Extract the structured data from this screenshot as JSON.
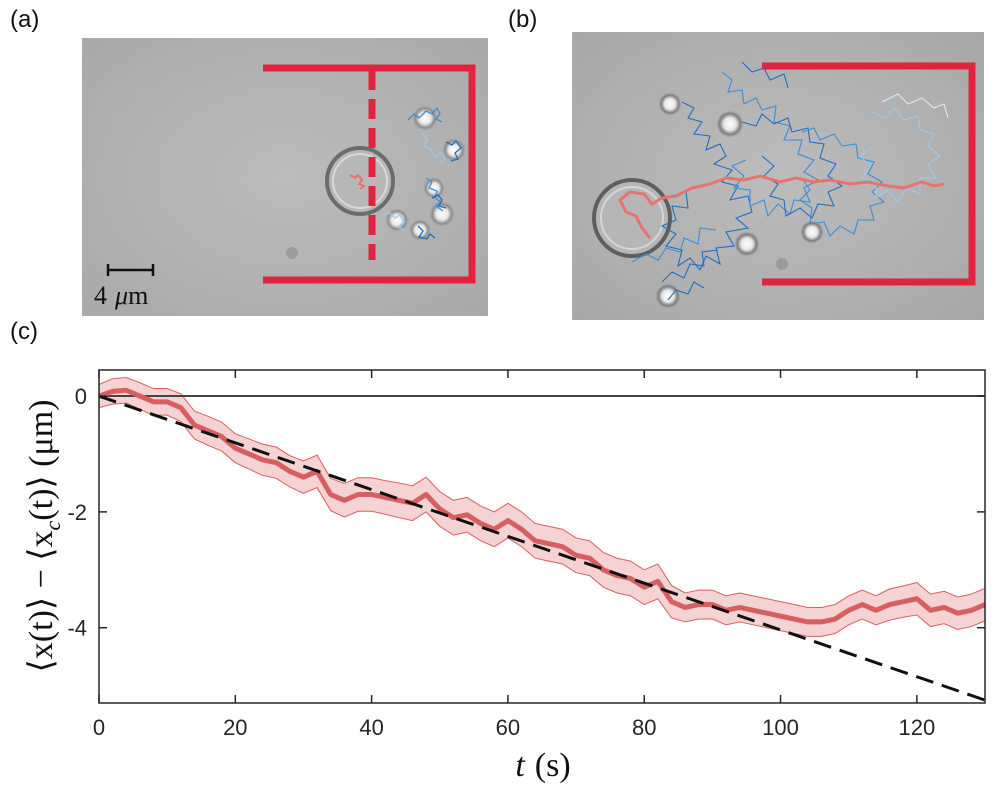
{
  "panels": {
    "a": {
      "label": "(a)",
      "scale_bar": {
        "number": "4",
        "unit_math": "μ",
        "unit_text": "m"
      }
    },
    "b": {
      "label": "(b)"
    },
    "c": {
      "label": "(c)"
    }
  },
  "colors": {
    "wall": "#e0233f",
    "trajectory_red": "#e8736e",
    "blue_dark": "#1f6fbf",
    "blue_mid": "#3a8fd6",
    "blue_light": "#9cc9ec",
    "band_fill": "#f6d3d3",
    "mean_line": "#d75f5f",
    "bg_gray": "#b4b4b4"
  },
  "chart_data": {
    "type": "line",
    "xlabel_var": "t",
    "xlabel_unit": "(s)",
    "ylabel": "⟨x(t)⟩ − ⟨x",
    "ylabel_sub": "c",
    "ylabel_tail": "(t)⟩ (μm)",
    "xlim": [
      0,
      130
    ],
    "ylim": [
      -5.3,
      0.45
    ],
    "xticks": [
      0,
      20,
      40,
      60,
      80,
      100,
      120
    ],
    "yticks": [
      0,
      -2,
      -4
    ],
    "ytick_labels": [
      "0",
      "-2",
      "-4"
    ],
    "reference_line": {
      "y": 0
    },
    "fit_line": {
      "x": [
        0,
        130
      ],
      "y": [
        0,
        -5.25
      ],
      "style": "dashed"
    },
    "mean": {
      "x": [
        0,
        2,
        4,
        6,
        8,
        10,
        12,
        14,
        16,
        18,
        20,
        22,
        24,
        26,
        28,
        30,
        32,
        34,
        36,
        38,
        40,
        42,
        44,
        46,
        48,
        50,
        52,
        54,
        56,
        58,
        60,
        62,
        64,
        66,
        68,
        70,
        72,
        74,
        76,
        78,
        80,
        82,
        84,
        86,
        88,
        90,
        92,
        94,
        96,
        98,
        100,
        102,
        104,
        106,
        108,
        110,
        112,
        114,
        116,
        118,
        120,
        122,
        124,
        126,
        128,
        130
      ],
      "y": [
        0.0,
        0.08,
        0.1,
        0.0,
        -0.1,
        -0.1,
        -0.2,
        -0.5,
        -0.6,
        -0.7,
        -0.9,
        -1.0,
        -1.1,
        -1.15,
        -1.3,
        -1.4,
        -1.3,
        -1.7,
        -1.8,
        -1.7,
        -1.7,
        -1.75,
        -1.8,
        -1.85,
        -1.7,
        -1.95,
        -2.1,
        -2.05,
        -2.2,
        -2.3,
        -2.15,
        -2.3,
        -2.5,
        -2.55,
        -2.6,
        -2.75,
        -2.8,
        -3.0,
        -3.1,
        -3.15,
        -3.3,
        -3.2,
        -3.55,
        -3.65,
        -3.6,
        -3.6,
        -3.7,
        -3.65,
        -3.7,
        -3.75,
        -3.8,
        -3.85,
        -3.9,
        -3.9,
        -3.85,
        -3.7,
        -3.6,
        -3.7,
        -3.6,
        -3.55,
        -3.5,
        -3.7,
        -3.65,
        -3.75,
        -3.7,
        -3.6
      ]
    },
    "band_halfwidth": [
      0.2,
      0.22,
      0.22,
      0.23,
      0.23,
      0.23,
      0.24,
      0.24,
      0.25,
      0.25,
      0.25,
      0.26,
      0.27,
      0.27,
      0.27,
      0.28,
      0.28,
      0.28,
      0.29,
      0.29,
      0.29,
      0.29,
      0.3,
      0.3,
      0.3,
      0.3,
      0.3,
      0.3,
      0.3,
      0.3,
      0.3,
      0.3,
      0.3,
      0.3,
      0.3,
      0.3,
      0.3,
      0.3,
      0.3,
      0.3,
      0.3,
      0.3,
      0.28,
      0.25,
      0.25,
      0.25,
      0.25,
      0.25,
      0.25,
      0.25,
      0.25,
      0.25,
      0.25,
      0.25,
      0.25,
      0.25,
      0.25,
      0.25,
      0.27,
      0.27,
      0.28,
      0.28,
      0.28,
      0.28,
      0.28,
      0.28
    ]
  }
}
